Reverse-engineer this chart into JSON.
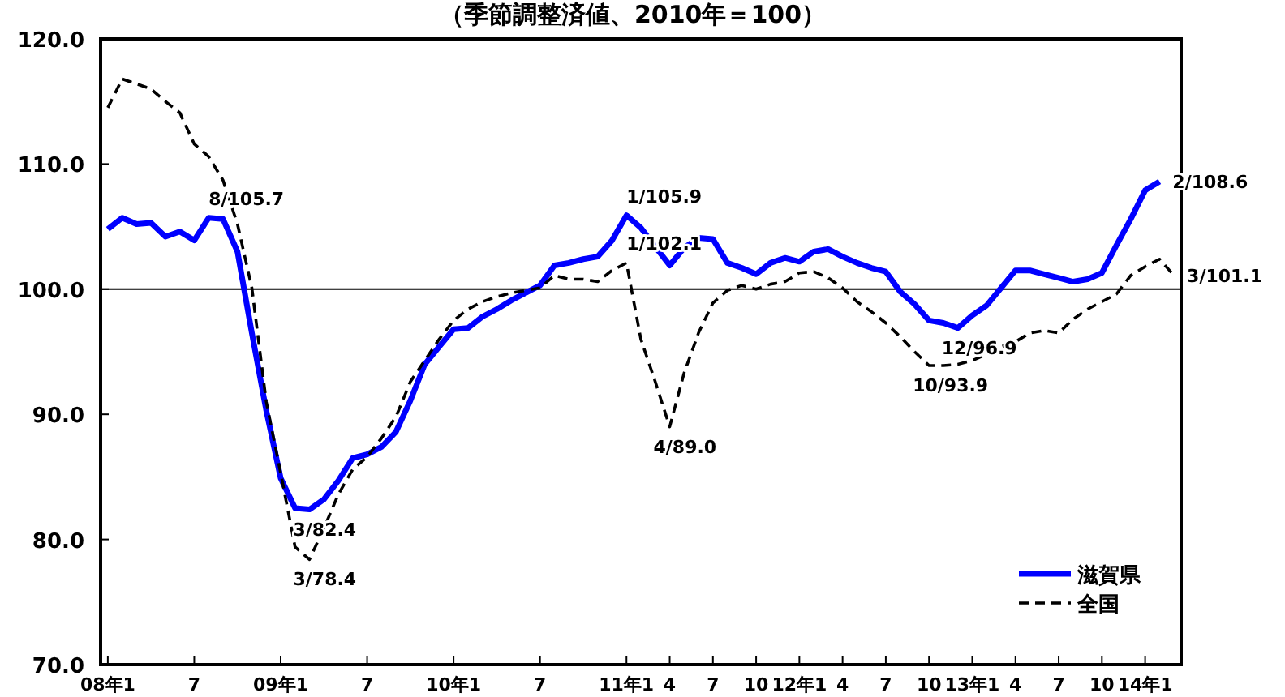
{
  "chart_data": {
    "type": "line",
    "title": "（季節調整済値、2010年＝100）",
    "x": [
      "2008-01",
      "2008-02",
      "2008-03",
      "2008-04",
      "2008-05",
      "2008-06",
      "2008-07",
      "2008-08",
      "2008-09",
      "2008-10",
      "2008-11",
      "2008-12",
      "2009-01",
      "2009-02",
      "2009-03",
      "2009-04",
      "2009-05",
      "2009-06",
      "2009-07",
      "2009-08",
      "2009-09",
      "2009-10",
      "2009-11",
      "2009-12",
      "2010-01",
      "2010-02",
      "2010-03",
      "2010-04",
      "2010-05",
      "2010-06",
      "2010-07",
      "2010-08",
      "2010-09",
      "2010-10",
      "2010-11",
      "2010-12",
      "2011-01",
      "2011-02",
      "2011-03",
      "2011-04",
      "2011-05",
      "2011-06",
      "2011-07",
      "2011-08",
      "2011-09",
      "2011-10",
      "2011-11",
      "2011-12",
      "2012-01",
      "2012-02",
      "2012-03",
      "2012-04",
      "2012-05",
      "2012-06",
      "2012-07",
      "2012-08",
      "2012-09",
      "2012-10",
      "2012-11",
      "2012-12",
      "2013-01",
      "2013-02",
      "2013-03",
      "2013-04",
      "2013-05",
      "2013-06",
      "2013-07",
      "2013-08",
      "2013-09",
      "2013-10",
      "2013-11",
      "2013-12",
      "2014-01",
      "2014-02",
      "2014-03"
    ],
    "series": [
      {
        "name": "滋賀県",
        "color": "#0000ff",
        "line_style": "solid",
        "values": [
          104.8,
          105.7,
          105.2,
          105.3,
          104.2,
          104.6,
          103.9,
          105.7,
          105.6,
          103.0,
          96.5,
          90.3,
          84.9,
          82.5,
          82.4,
          83.2,
          84.7,
          86.5,
          86.8,
          87.4,
          88.6,
          91.1,
          94.0,
          95.4,
          96.8,
          96.9,
          97.8,
          98.4,
          99.1,
          99.7,
          100.3,
          101.9,
          102.1,
          102.4,
          102.6,
          103.9,
          105.9,
          104.9,
          103.4,
          101.9,
          103.3,
          104.1,
          104.0,
          102.1,
          101.7,
          101.2,
          102.1,
          102.5,
          102.2,
          103.0,
          103.2,
          102.6,
          102.1,
          101.7,
          101.4,
          99.8,
          98.8,
          97.5,
          97.3,
          96.9,
          97.9,
          98.7,
          100.1,
          101.5,
          101.5,
          101.2,
          100.9,
          100.6,
          100.8,
          101.3,
          103.5,
          105.6,
          107.9,
          108.6,
          null
        ]
      },
      {
        "name": "全国",
        "color": "#000000",
        "line_style": "dashed",
        "values": [
          114.5,
          116.8,
          116.4,
          116.0,
          115.0,
          114.1,
          111.6,
          110.6,
          108.7,
          105.2,
          100.1,
          91.0,
          85.3,
          79.4,
          78.4,
          80.9,
          83.6,
          85.6,
          86.6,
          88.1,
          89.8,
          92.6,
          94.3,
          96.0,
          97.5,
          98.4,
          99.0,
          99.4,
          99.7,
          99.9,
          100.1,
          101.1,
          100.8,
          100.8,
          100.6,
          101.5,
          102.1,
          96.0,
          92.6,
          89.0,
          93.3,
          96.5,
          98.9,
          99.9,
          100.3,
          100.0,
          100.4,
          100.6,
          101.3,
          101.4,
          100.9,
          100.1,
          99.0,
          98.2,
          97.3,
          96.2,
          95.0,
          93.9,
          93.9,
          94.0,
          94.3,
          94.8,
          95.4,
          95.8,
          96.5,
          96.7,
          96.5,
          97.6,
          98.4,
          99.0,
          99.6,
          101.1,
          101.8,
          102.4,
          101.1
        ]
      }
    ],
    "xlim": [
      "2007-12-16",
      "2014-03-16"
    ],
    "xticks": [
      {
        "value": "2008-01",
        "label": "08年1"
      },
      {
        "value": "2008-07",
        "label": "7"
      },
      {
        "value": "2009-01",
        "label": "09年1"
      },
      {
        "value": "2009-07",
        "label": "7"
      },
      {
        "value": "2010-01",
        "label": "10年1"
      },
      {
        "value": "2010-07",
        "label": "7"
      },
      {
        "value": "2011-01",
        "label": "11年1"
      },
      {
        "value": "2011-04",
        "label": "4"
      },
      {
        "value": "2011-07",
        "label": "7"
      },
      {
        "value": "2011-10",
        "label": "10"
      },
      {
        "value": "2012-01",
        "label": "12年1"
      },
      {
        "value": "2012-04",
        "label": "4"
      },
      {
        "value": "2012-07",
        "label": "7"
      },
      {
        "value": "2012-10",
        "label": "10"
      },
      {
        "value": "2013-01",
        "label": "13年1"
      },
      {
        "value": "2013-04",
        "label": "4"
      },
      {
        "value": "2013-07",
        "label": "7"
      },
      {
        "value": "2013-10",
        "label": "10"
      },
      {
        "value": "2014-01",
        "label": "14年1"
      }
    ],
    "ylim": [
      70,
      120
    ],
    "yticks": [
      {
        "value": 70,
        "label": "70.0"
      },
      {
        "value": 80,
        "label": "80.0"
      },
      {
        "value": 90,
        "label": "90.0"
      },
      {
        "value": 100,
        "label": "100.0"
      },
      {
        "value": 110,
        "label": "110.0"
      },
      {
        "value": 120,
        "label": "120.0"
      }
    ],
    "ref_lines": [
      {
        "axis": "y",
        "value": 100,
        "color": "#000000"
      }
    ],
    "annotations": [
      {
        "text": "8/105.7",
        "x": "2008-08",
        "y": 105.7
      },
      {
        "text": "3/82.4",
        "x": "2009-03",
        "y": 82.4
      },
      {
        "text": "3/78.4",
        "x": "2009-03",
        "y": 78.4
      },
      {
        "text": "1/105.9",
        "x": "2011-01",
        "y": 105.9
      },
      {
        "text": "1/102.1",
        "x": "2011-01",
        "y": 102.1
      },
      {
        "text": "4/89.0",
        "x": "2011-04",
        "y": 89.0
      },
      {
        "text": "12/96.9",
        "x": "2012-12",
        "y": 96.9
      },
      {
        "text": "10/93.9",
        "x": "2012-10",
        "y": 93.9
      },
      {
        "text": "2/108.6",
        "x": "2014-02",
        "y": 108.6
      },
      {
        "text": "3/101.1",
        "x": "2014-03",
        "y": 101.1
      }
    ],
    "grid": false,
    "legend": "bottom right",
    "marker": "none"
  }
}
